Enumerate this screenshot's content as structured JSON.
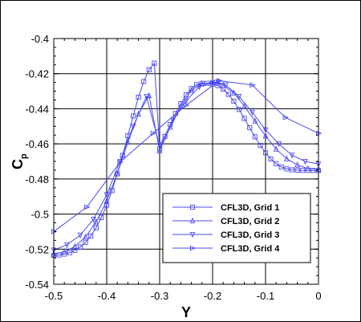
{
  "chart_data": {
    "type": "line",
    "title": "",
    "xlabel": "Y",
    "ylabel": {
      "main": "C",
      "sub": "p"
    },
    "xlim": [
      -0.5,
      0
    ],
    "ylim": [
      -0.54,
      -0.4
    ],
    "xticks": [
      -0.5,
      -0.4,
      -0.3,
      -0.2,
      -0.1,
      0
    ],
    "xtick_labels": [
      "-0.5",
      "-0.4",
      "-0.3",
      "-0.2",
      "-0.1",
      "0"
    ],
    "yticks": [
      -0.54,
      -0.52,
      -0.5,
      -0.48,
      -0.46,
      -0.44,
      -0.42,
      -0.4
    ],
    "ytick_labels": [
      "-0.54",
      "-0.52",
      "-0.5",
      "-0.48",
      "-0.46",
      "-0.44",
      "-0.42",
      "-0.4"
    ],
    "grid": true,
    "legend_position": "bottom-right",
    "line_color": "#4a4af0",
    "series": [
      {
        "name": "CFL3D, Grid 1",
        "marker": "square",
        "x": [
          -0.5,
          -0.49,
          -0.48,
          -0.47,
          -0.46,
          -0.45,
          -0.44,
          -0.43,
          -0.42,
          -0.41,
          -0.4,
          -0.39,
          -0.38,
          -0.37,
          -0.36,
          -0.35,
          -0.34,
          -0.33,
          -0.32,
          -0.31,
          -0.3,
          -0.29,
          -0.28,
          -0.27,
          -0.26,
          -0.25,
          -0.24,
          -0.23,
          -0.22,
          -0.21,
          -0.2,
          -0.19,
          -0.18,
          -0.17,
          -0.16,
          -0.15,
          -0.14,
          -0.13,
          -0.12,
          -0.11,
          -0.1,
          -0.09,
          -0.08,
          -0.07,
          -0.06,
          -0.05,
          -0.04,
          -0.03,
          -0.02,
          -0.01,
          0.0
        ],
        "y": [
          -0.5235,
          -0.5233,
          -0.5228,
          -0.522,
          -0.5207,
          -0.5188,
          -0.5161,
          -0.5125,
          -0.5078,
          -0.502,
          -0.4949,
          -0.4866,
          -0.4771,
          -0.4666,
          -0.4554,
          -0.4441,
          -0.4334,
          -0.4245,
          -0.4178,
          -0.414,
          -0.463,
          -0.4558,
          -0.449,
          -0.4427,
          -0.4371,
          -0.4321,
          -0.4285,
          -0.4262,
          -0.4255,
          -0.4255,
          -0.4259,
          -0.4268,
          -0.4288,
          -0.4318,
          -0.4357,
          -0.4404,
          -0.4455,
          -0.4508,
          -0.456,
          -0.4609,
          -0.4651,
          -0.4686,
          -0.4713,
          -0.4732,
          -0.4743,
          -0.4748,
          -0.475,
          -0.4751,
          -0.4751,
          -0.4752,
          -0.4752
        ]
      },
      {
        "name": "CFL3D, Grid 2",
        "marker": "triangle-up",
        "x": [
          -0.5,
          -0.48,
          -0.46,
          -0.44,
          -0.42,
          -0.4,
          -0.38,
          -0.36,
          -0.34,
          -0.32,
          -0.3,
          -0.28,
          -0.26,
          -0.24,
          -0.22,
          -0.2,
          -0.19,
          -0.18,
          -0.16,
          -0.14,
          -0.12,
          -0.1,
          -0.08,
          -0.06,
          -0.04,
          -0.02,
          0.0
        ],
        "y": [
          -0.5228,
          -0.5215,
          -0.5185,
          -0.513,
          -0.5045,
          -0.4925,
          -0.477,
          -0.459,
          -0.443,
          -0.4325,
          -0.464,
          -0.4505,
          -0.4385,
          -0.4295,
          -0.4258,
          -0.425,
          -0.4253,
          -0.4265,
          -0.431,
          -0.4385,
          -0.447,
          -0.4555,
          -0.463,
          -0.4685,
          -0.472,
          -0.474,
          -0.4745
        ]
      },
      {
        "name": "CFL3D, Grid 3",
        "marker": "triangle-down",
        "x": [
          -0.5,
          -0.475,
          -0.45,
          -0.425,
          -0.4,
          -0.375,
          -0.35,
          -0.325,
          -0.3,
          -0.275,
          -0.25,
          -0.225,
          -0.2,
          -0.19,
          -0.175,
          -0.15,
          -0.125,
          -0.1,
          -0.075,
          -0.05,
          -0.025,
          0.0
        ],
        "y": [
          -0.5205,
          -0.5175,
          -0.512,
          -0.503,
          -0.489,
          -0.47,
          -0.45,
          -0.433,
          -0.461,
          -0.4465,
          -0.4355,
          -0.4275,
          -0.425,
          -0.4248,
          -0.4265,
          -0.433,
          -0.442,
          -0.452,
          -0.46,
          -0.4665,
          -0.47,
          -0.4715
        ]
      },
      {
        "name": "CFL3D, Grid 4",
        "marker": "triangle-right",
        "x": [
          -0.5,
          -0.4375,
          -0.375,
          -0.3125,
          -0.25,
          -0.1875,
          -0.125,
          -0.0625,
          0.0
        ],
        "y": [
          -0.51,
          -0.496,
          -0.4705,
          -0.454,
          -0.438,
          -0.424,
          -0.4265,
          -0.445,
          -0.454
        ]
      }
    ]
  }
}
